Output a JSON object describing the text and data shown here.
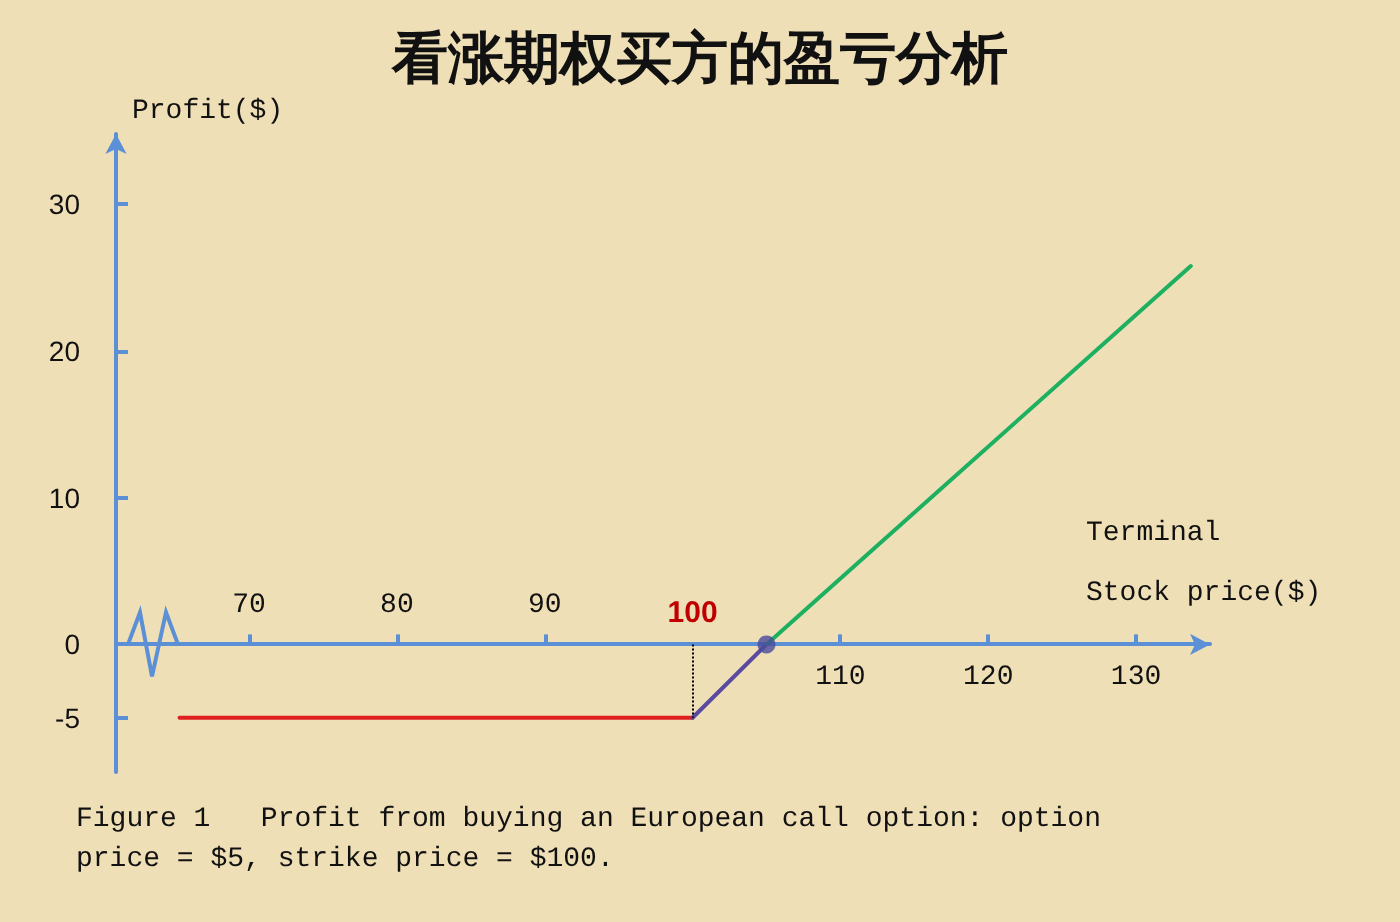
{
  "chart_data": {
    "type": "line",
    "title": "看涨期权买方的盈亏分析",
    "xlabel": "Terminal\nStock price($)",
    "ylabel": "Profit($)",
    "xlim": [
      61,
      135
    ],
    "xticks": [
      110,
      120,
      130
    ],
    "x2lim": [
      61,
      135
    ],
    "x2ticks": [
      70,
      80,
      90
    ],
    "ylim": [
      -8.7,
      34.8
    ],
    "yticks": [
      -5,
      0,
      10,
      20,
      30
    ],
    "grid": false,
    "marker": "none",
    "line_style": "solid",
    "series": [
      {
        "color": "#e02020",
        "x": [
          65.3,
          100
        ],
        "values": [
          -5,
          -5
        ]
      },
      {
        "color": "#5a4aa0",
        "x": [
          100,
          105
        ],
        "values": [
          -5,
          0
        ]
      },
      {
        "color": "#1db060",
        "x": [
          105,
          133.7
        ],
        "values": [
          0,
          25.8
        ]
      },
      {
        "type": "scatter",
        "marker": "circle",
        "color": "#4a4a9c",
        "x": [
          105
        ],
        "values": [
          0
        ]
      }
    ],
    "ref_lines": [
      {
        "axis": "x",
        "value": 100,
        "label": "100",
        "color": "#000000",
        "line_style": "dotted"
      }
    ],
    "annotations": [
      "Figure 1   Profit from buying an European call option: option\nprice = $5, strike price = $100."
    ]
  }
}
